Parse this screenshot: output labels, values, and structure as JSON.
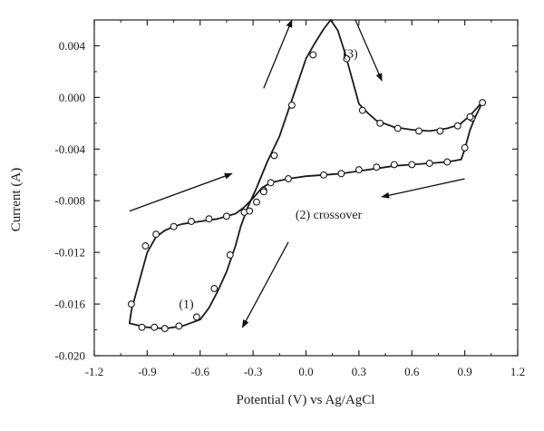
{
  "chart_data": {
    "type": "line",
    "xlabel": "Potential (V) vs Ag/AgCl",
    "ylabel": "Current (A)",
    "xlim": [
      -1.2,
      1.2
    ],
    "ylim": [
      -0.02,
      0.006
    ],
    "x_ticks": [
      -1.2,
      -0.9,
      -0.6,
      -0.3,
      0.0,
      0.3,
      0.6,
      0.9,
      1.2
    ],
    "x_tick_labels": [
      "-1.2",
      "-0.9",
      "-0.6",
      "-0.3",
      "0.0",
      "0.3",
      "0.6",
      "0.9",
      "1.2"
    ],
    "y_ticks": [
      -0.02,
      -0.016,
      -0.012,
      -0.008,
      -0.004,
      0.0,
      0.004
    ],
    "y_tick_labels": [
      "-0.020",
      "-0.016",
      "-0.012",
      "-0.008",
      "-0.004",
      "0.000",
      "0.004"
    ],
    "grid": false,
    "series": [
      {
        "curve": [
          [
            1.0,
            -0.0003
          ],
          [
            0.985,
            -0.0008
          ],
          [
            0.96,
            -0.0015
          ],
          [
            0.93,
            -0.0025
          ],
          [
            0.9,
            -0.004
          ],
          [
            0.88,
            -0.0048
          ],
          [
            0.8,
            -0.005
          ],
          [
            0.7,
            -0.0051
          ],
          [
            0.6,
            -0.0052
          ],
          [
            0.5,
            -0.0053
          ],
          [
            0.4,
            -0.0055
          ],
          [
            0.3,
            -0.0057
          ],
          [
            0.2,
            -0.0059
          ],
          [
            0.1,
            -0.006
          ],
          [
            0.0,
            -0.0061
          ],
          [
            -0.1,
            -0.0063
          ],
          [
            -0.2,
            -0.0066
          ],
          [
            -0.25,
            -0.007
          ],
          [
            -0.3,
            -0.0078
          ],
          [
            -0.35,
            -0.0085
          ],
          [
            -0.4,
            -0.009
          ],
          [
            -0.45,
            -0.0092
          ],
          [
            -0.5,
            -0.0094
          ],
          [
            -0.6,
            -0.0096
          ],
          [
            -0.7,
            -0.0098
          ],
          [
            -0.75,
            -0.01
          ],
          [
            -0.8,
            -0.0103
          ],
          [
            -0.85,
            -0.0108
          ],
          [
            -0.9,
            -0.012
          ],
          [
            -0.93,
            -0.0135
          ],
          [
            -0.96,
            -0.015
          ],
          [
            -0.99,
            -0.0165
          ],
          [
            -1.0,
            -0.0175
          ],
          [
            -0.97,
            -0.0176
          ],
          [
            -0.9,
            -0.0178
          ],
          [
            -0.8,
            -0.0179
          ],
          [
            -0.7,
            -0.0177
          ],
          [
            -0.6,
            -0.0172
          ],
          [
            -0.55,
            -0.0163
          ],
          [
            -0.5,
            -0.015
          ],
          [
            -0.45,
            -0.0135
          ],
          [
            -0.4,
            -0.0115
          ],
          [
            -0.37,
            -0.01
          ],
          [
            -0.33,
            -0.0085
          ],
          [
            -0.28,
            -0.007
          ],
          [
            -0.22,
            -0.005
          ],
          [
            -0.15,
            -0.003
          ],
          [
            -0.1,
            -0.001
          ],
          [
            -0.05,
            0.001
          ],
          [
            0.0,
            0.003
          ],
          [
            0.05,
            0.0042
          ],
          [
            0.1,
            0.0053
          ],
          [
            0.14,
            0.006
          ],
          [
            0.18,
            0.0052
          ],
          [
            0.22,
            0.0035
          ],
          [
            0.26,
            0.0015
          ],
          [
            0.3,
            -0.0005
          ],
          [
            0.35,
            -0.0012
          ],
          [
            0.4,
            -0.0018
          ],
          [
            0.5,
            -0.0023
          ],
          [
            0.6,
            -0.0025
          ],
          [
            0.7,
            -0.0026
          ],
          [
            0.8,
            -0.0024
          ],
          [
            0.87,
            -0.0021
          ],
          [
            0.93,
            -0.0014
          ],
          [
            0.97,
            -0.0008
          ],
          [
            1.0,
            -0.0003
          ]
        ],
        "markers": [
          [
            1.0,
            -0.0004
          ],
          [
            0.94,
            -0.0016
          ],
          [
            0.9,
            -0.0039
          ],
          [
            0.8,
            -0.005
          ],
          [
            0.7,
            -0.0051
          ],
          [
            0.6,
            -0.0052
          ],
          [
            0.5,
            -0.0052
          ],
          [
            0.4,
            -0.0054
          ],
          [
            0.3,
            -0.0056
          ],
          [
            0.2,
            -0.0059
          ],
          [
            0.1,
            -0.006
          ],
          [
            -0.1,
            -0.0063
          ],
          [
            -0.2,
            -0.0066
          ],
          [
            -0.24,
            -0.0072
          ],
          [
            -0.28,
            -0.0081
          ],
          [
            -0.35,
            -0.0089
          ],
          [
            -0.45,
            -0.0092
          ],
          [
            -0.55,
            -0.0094
          ],
          [
            -0.65,
            -0.0096
          ],
          [
            -0.75,
            -0.01
          ],
          [
            -0.85,
            -0.0106
          ],
          [
            -0.91,
            -0.0115
          ],
          [
            -0.99,
            -0.016
          ],
          [
            -0.93,
            -0.0178
          ],
          [
            -0.86,
            -0.0178
          ],
          [
            -0.8,
            -0.0179
          ],
          [
            -0.72,
            -0.0177
          ],
          [
            -0.62,
            -0.017
          ],
          [
            -0.52,
            -0.0148
          ],
          [
            -0.43,
            -0.0122
          ],
          [
            -0.32,
            -0.0088
          ],
          [
            -0.24,
            -0.0073
          ],
          [
            -0.18,
            -0.0045
          ],
          [
            -0.08,
            -0.0006
          ],
          [
            0.04,
            0.0033
          ],
          [
            0.23,
            0.003
          ],
          [
            0.32,
            -0.001
          ],
          [
            0.42,
            -0.002
          ],
          [
            0.52,
            -0.0024
          ],
          [
            0.64,
            -0.0026
          ],
          [
            0.76,
            -0.0026
          ],
          [
            0.86,
            -0.0022
          ],
          [
            0.93,
            -0.0015
          ]
        ]
      }
    ],
    "annotations": [
      {
        "text": "(1)",
        "x": -0.72,
        "y": -0.0163
      },
      {
        "text": "(2) crossover",
        "x": -0.06,
        "y": -0.0094
      },
      {
        "text": "(3)",
        "x": 0.21,
        "y": 0.0031
      }
    ],
    "arrows": [
      {
        "x1": -1.0,
        "y1": -0.0088,
        "x2": -0.42,
        "y2": -0.0059
      },
      {
        "x1": -0.24,
        "y1": 0.0007,
        "x2": -0.08,
        "y2": 0.006
      },
      {
        "x1": 0.28,
        "y1": 0.006,
        "x2": 0.43,
        "y2": 0.0013
      },
      {
        "x1": 0.9,
        "y1": -0.0063,
        "x2": 0.43,
        "y2": -0.0077
      },
      {
        "x1": -0.1,
        "y1": -0.0112,
        "x2": -0.36,
        "y2": -0.0178
      }
    ]
  }
}
